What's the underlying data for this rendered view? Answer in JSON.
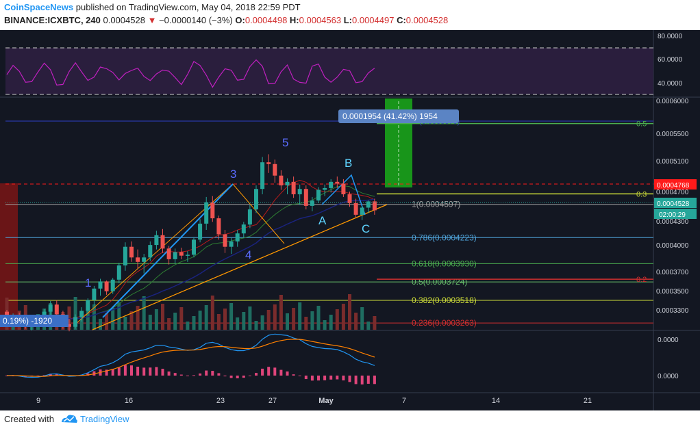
{
  "header": {
    "publisher": "CoinSpaceNews",
    "published_text": " published on TradingView.com, May 04, 2018 22:59 PDT",
    "symbol": "BINANCE:ICXBTC, 240",
    "last": "0.0004528",
    "change": "−0.0000140 (−3%)",
    "o_label": "O:",
    "o_value": "0.0004498",
    "h_label": "H:",
    "h_value": "0.0004563",
    "l_label": "L:",
    "l_value": "0.0004497",
    "c_label": "C:",
    "c_value": "0.0004528"
  },
  "footer": {
    "created": "Created with",
    "brand": "TradingView"
  },
  "colors": {
    "background": "#131722",
    "up": "#26a69a",
    "down": "#ef5350",
    "rsi": "#c020c0",
    "macd": "#2196f3",
    "signal": "#ff8000",
    "fib": "#9e9e9e"
  },
  "chart_data": {
    "type": "candlestick",
    "x_ticks": [
      "9",
      "16",
      "23",
      "27",
      "May",
      "7",
      "14",
      "21"
    ],
    "price_axis_ticks": [
      "0.0006000",
      "0.0005500",
      "0.0005100",
      "0.0004700",
      "0.0004300",
      "0.0004000",
      "0.0003700",
      "0.0003500",
      "0.0003300"
    ],
    "rsi_axis_ticks": [
      "80.0000",
      "60.0000",
      "40.0000"
    ],
    "macd_axis_ticks": [
      "0.0000",
      "0.0000"
    ],
    "price_badges": [
      {
        "value": "0.0004768",
        "color": "#ff1a1a"
      },
      {
        "value": "0.0004528",
        "color": "#26a69a"
      },
      {
        "value": "02:00:29",
        "color": "#26a69a"
      }
    ],
    "fib_levels": [
      {
        "label": "1(0.0004597)",
        "price": 0.0004597,
        "color": "#9e9e9e"
      },
      {
        "label": "0.786(0.0004223)",
        "price": 0.0004223,
        "color": "#4fa3d9"
      },
      {
        "label": "0.618(0.0003930)",
        "price": 0.000393,
        "color": "#4caf50"
      },
      {
        "label": "0.5(0.0003724)",
        "price": 0.0003724,
        "color": "#66bb6a"
      },
      {
        "label": "0.382(0.0003518)",
        "price": 0.0003518,
        "color": "#cddc39"
      },
      {
        "label": "0.236(0.0003263)",
        "price": 0.0003263,
        "color": "#d32f2f"
      }
    ],
    "right_fib_labels": [
      {
        "label": "0.5",
        "price": 0.0005505,
        "color": "#4caf50"
      },
      {
        "label": "0.3",
        "price": 0.0004715,
        "color": "#cddc39"
      },
      {
        "label": "0.2",
        "price": 0.0003755,
        "color": "#d32f2f"
      }
    ],
    "target_box_label": "0.0001954 (41.42%) 1954",
    "target_ghost_label": "(0.0005676)",
    "left_box_label": "0.19%) -1920",
    "wave_labels": [
      "1",
      "3",
      "4",
      "5",
      "A",
      "B",
      "C"
    ],
    "candles": [
      [
        0.000339,
        0.000341,
        0.00033,
        0.000332
      ],
      [
        0.000332,
        0.000337,
        0.000327,
        0.000333
      ],
      [
        0.000333,
        0.000338,
        0.000325,
        0.000327
      ],
      [
        0.000327,
        0.000331,
        0.00032,
        0.000322
      ],
      [
        0.000322,
        0.00033,
        0.000318,
        0.000327
      ],
      [
        0.000327,
        0.000334,
        0.000323,
        0.00033
      ],
      [
        0.00033,
        0.000342,
        0.000326,
        0.000339
      ],
      [
        0.000339,
        0.000351,
        0.000335,
        0.000347
      ],
      [
        0.000347,
        0.000352,
        0.000332,
        0.000336
      ],
      [
        0.000336,
        0.00034,
        0.00032,
        0.000325
      ],
      [
        0.000325,
        0.000331,
        0.000317,
        0.000322
      ],
      [
        0.000322,
        0.000336,
        0.00032,
        0.000333
      ],
      [
        0.000333,
        0.000344,
        0.000328,
        0.00034
      ],
      [
        0.00034,
        0.000354,
        0.000336,
        0.000352
      ],
      [
        0.000352,
        0.000368,
        0.000346,
        0.000365
      ],
      [
        0.000365,
        0.000376,
        0.000357,
        0.000373
      ],
      [
        0.000373,
        0.000374,
        0.000358,
        0.000362
      ],
      [
        0.000362,
        0.000377,
        0.000359,
        0.000375
      ],
      [
        0.000375,
        0.000394,
        0.000371,
        0.000391
      ],
      [
        0.000391,
        0.000417,
        0.000385,
        0.000412
      ],
      [
        0.000412,
        0.000418,
        0.000395,
        0.0004
      ],
      [
        0.0004,
        0.000409,
        0.000387,
        0.000395
      ],
      [
        0.000395,
        0.000404,
        0.000382,
        0.0004
      ],
      [
        0.0004,
        0.000418,
        0.000396,
        0.000414
      ],
      [
        0.000414,
        0.00043,
        0.000409,
        0.000425
      ],
      [
        0.000425,
        0.000432,
        0.000405,
        0.00041
      ],
      [
        0.00041,
        0.000413,
        0.000392,
        0.000398
      ],
      [
        0.000398,
        0.00041,
        0.000393,
        0.000406
      ],
      [
        0.000406,
        0.000411,
        0.000398,
        0.000402
      ],
      [
        0.000402,
        0.000407,
        0.000395,
        0.000403
      ],
      [
        0.000403,
        0.000423,
        0.0004,
        0.00042
      ],
      [
        0.00042,
        0.000443,
        0.000417,
        0.000438
      ],
      [
        0.000438,
        0.000468,
        0.000431,
        0.000462
      ],
      [
        0.000462,
        0.000469,
        0.00044,
        0.000444
      ],
      [
        0.000444,
        0.000447,
        0.00042,
        0.000426
      ],
      [
        0.000426,
        0.000431,
        0.000405,
        0.000412
      ],
      [
        0.000412,
        0.000422,
        0.000404,
        0.000418
      ],
      [
        0.000418,
        0.000431,
        0.000412,
        0.000427
      ],
      [
        0.000427,
        0.00044,
        0.000422,
        0.000437
      ],
      [
        0.000437,
        0.000459,
        0.000433,
        0.000454
      ],
      [
        0.000454,
        0.000481,
        0.00045,
        0.000477
      ],
      [
        0.000477,
        0.000513,
        0.000471,
        0.000507
      ],
      [
        0.000507,
        0.000516,
        0.000495,
        0.000505
      ],
      [
        0.000505,
        0.00051,
        0.000484,
        0.000492
      ],
      [
        0.000492,
        0.000498,
        0.000476,
        0.000481
      ],
      [
        0.000481,
        0.000489,
        0.000471,
        0.000485
      ],
      [
        0.000485,
        0.000491,
        0.000467,
        0.000471
      ],
      [
        0.000471,
        0.000482,
        0.000459,
        0.000477
      ],
      [
        0.000477,
        0.000481,
        0.000454,
        0.000458
      ],
      [
        0.000458,
        0.000468,
        0.000452,
        0.000464
      ],
      [
        0.000464,
        0.000479,
        0.000461,
        0.000476
      ],
      [
        0.000476,
        0.000482,
        0.000469,
        0.000478
      ],
      [
        0.000478,
        0.000488,
        0.000473,
        0.000485
      ],
      [
        0.000485,
        0.000491,
        0.000478,
        0.000483
      ],
      [
        0.000483,
        0.000488,
        0.000468,
        0.000471
      ],
      [
        0.000471,
        0.000474,
        0.000457,
        0.000461
      ],
      [
        0.000461,
        0.000466,
        0.000445,
        0.000448
      ],
      [
        0.000448,
        0.000458,
        0.000442,
        0.000456
      ],
      [
        0.000456,
        0.000464,
        0.00045,
        0.000463
      ],
      [
        0.000463,
        0.000466,
        0.000448,
        0.000453
      ]
    ]
  }
}
